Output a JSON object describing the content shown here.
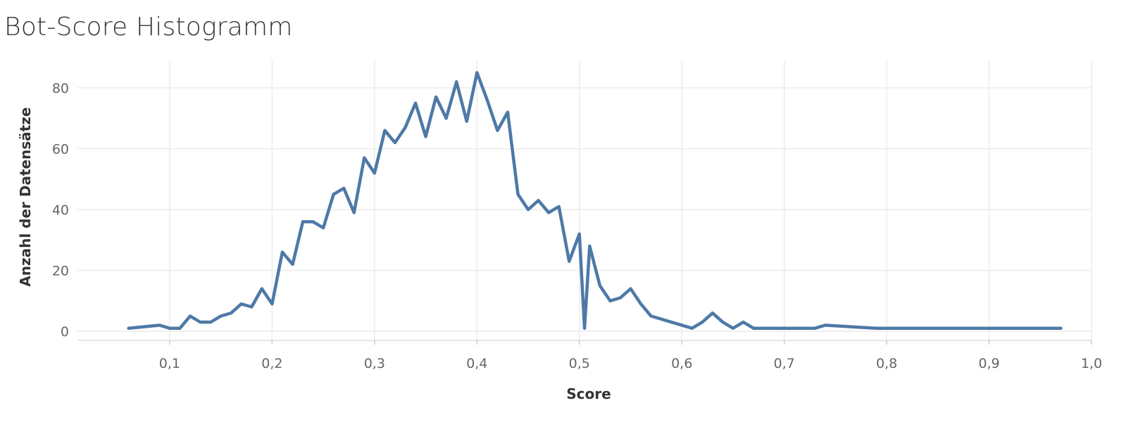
{
  "chart_data": {
    "type": "line",
    "title": "Bot-Score Histogramm",
    "xlabel": "Score",
    "ylabel": "Anzahl der Datensätze",
    "xlim": [
      0.01,
      1.0
    ],
    "ylim": [
      -3,
      89
    ],
    "x_ticks": [
      0.1,
      0.2,
      0.3,
      0.4,
      0.5,
      0.6,
      0.7,
      0.8,
      0.9,
      1.0
    ],
    "x_tick_labels": [
      "0,1",
      "0,2",
      "0,3",
      "0,4",
      "0,5",
      "0,6",
      "0,7",
      "0,8",
      "0,9",
      "1,0"
    ],
    "y_ticks": [
      0,
      20,
      40,
      60,
      80
    ],
    "y_tick_labels": [
      "0",
      "20",
      "40",
      "60",
      "80"
    ],
    "grid": true,
    "legend": "none",
    "line_color": "#4e79a7",
    "series": [
      {
        "x": [
          0.06,
          0.09,
          0.1,
          0.11,
          0.12,
          0.13,
          0.14,
          0.15,
          0.16,
          0.17,
          0.18,
          0.19,
          0.2,
          0.21,
          0.22,
          0.23,
          0.24,
          0.25,
          0.26,
          0.27,
          0.28,
          0.29,
          0.3,
          0.31,
          0.32,
          0.33,
          0.34,
          0.35,
          0.36,
          0.37,
          0.38,
          0.39,
          0.4,
          0.41,
          0.42,
          0.43,
          0.44,
          0.45,
          0.46,
          0.47,
          0.48,
          0.49,
          0.5,
          0.505,
          0.51,
          0.52,
          0.53,
          0.54,
          0.55,
          0.56,
          0.57,
          0.61,
          0.62,
          0.63,
          0.64,
          0.65,
          0.66,
          0.67,
          0.7,
          0.72,
          0.73,
          0.74,
          0.79,
          0.85,
          0.92,
          0.97
        ],
        "values": [
          1,
          2,
          1,
          1,
          5,
          3,
          3,
          5,
          6,
          9,
          8,
          14,
          9,
          26,
          22,
          36,
          36,
          34,
          45,
          47,
          39,
          57,
          52,
          66,
          62,
          67,
          75,
          64,
          77,
          70,
          82,
          69,
          85,
          76,
          66,
          72,
          45,
          40,
          43,
          39,
          41,
          23,
          32,
          1,
          28,
          15,
          10,
          11,
          14,
          9,
          5,
          1,
          3,
          6,
          3,
          1,
          3,
          1,
          1,
          1,
          1,
          2,
          1,
          1,
          1,
          1
        ]
      }
    ]
  }
}
